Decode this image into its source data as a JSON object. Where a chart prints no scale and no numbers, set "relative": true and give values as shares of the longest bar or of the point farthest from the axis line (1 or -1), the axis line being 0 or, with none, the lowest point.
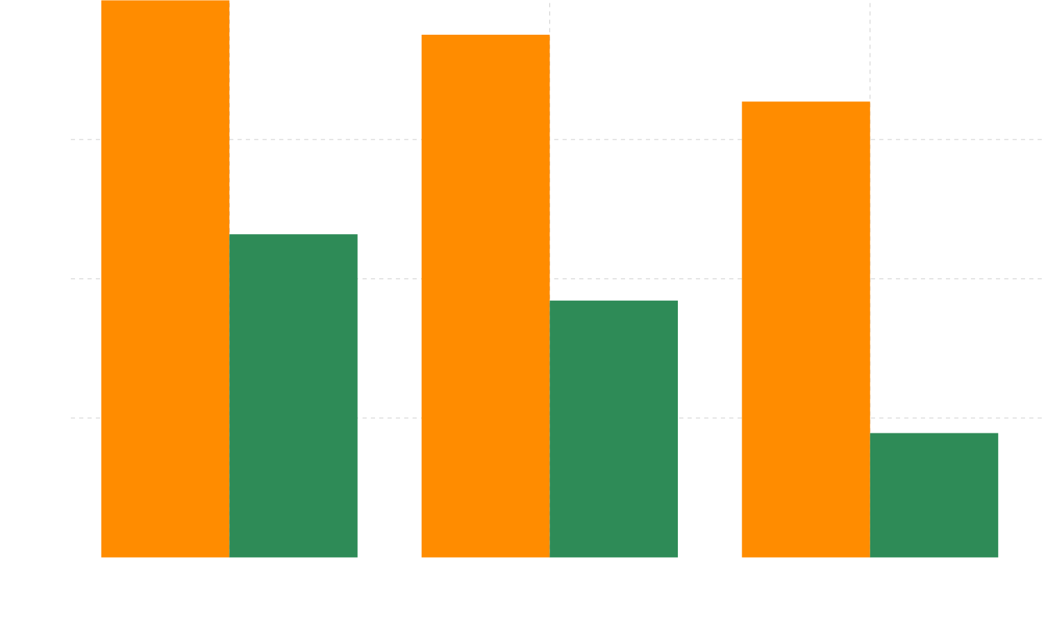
{
  "chart_data": {
    "type": "bar",
    "relative": true,
    "categories": [
      null,
      null,
      null
    ],
    "series": [
      {
        "color": "#ff8c00",
        "values": [
          1,
          0.938,
          0.818
        ]
      },
      {
        "color": "#2e8b57",
        "values": [
          0.58,
          0.461,
          0.223
        ]
      }
    ],
    "grid": true
  }
}
